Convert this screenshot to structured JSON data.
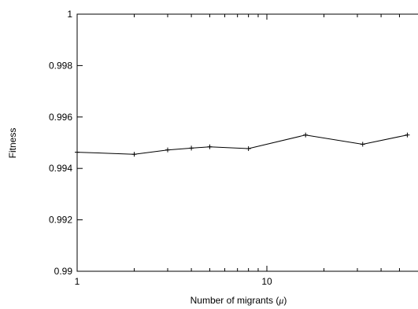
{
  "chart_data": {
    "type": "line",
    "title": "",
    "xlabel": "Number of migrants (",
    "xlabel_symbol": "μ",
    "xlabel_close": ")",
    "ylabel": "Fitness",
    "x_scale": "log",
    "xlim": [
      1,
      55
    ],
    "ylim": [
      0.99,
      1.0
    ],
    "x_ticks": [
      {
        "value": 1,
        "label": "1"
      },
      {
        "value": 10,
        "label": "10"
      }
    ],
    "y_ticks": [
      {
        "value": 0.99,
        "label": "0.99"
      },
      {
        "value": 0.992,
        "label": "0.992"
      },
      {
        "value": 0.994,
        "label": "0.994"
      },
      {
        "value": 0.996,
        "label": "0.996"
      },
      {
        "value": 0.998,
        "label": "0.998"
      },
      {
        "value": 1.0,
        "label": "1"
      }
    ],
    "grid": false,
    "series": [
      {
        "color": "#000000",
        "marker": "plus",
        "x": [
          1,
          2,
          3,
          4,
          5,
          8,
          16,
          32,
          55
        ],
        "y": [
          0.99463,
          0.99455,
          0.99472,
          0.99479,
          0.99484,
          0.99477,
          0.9953,
          0.99494,
          0.9953
        ]
      }
    ]
  }
}
